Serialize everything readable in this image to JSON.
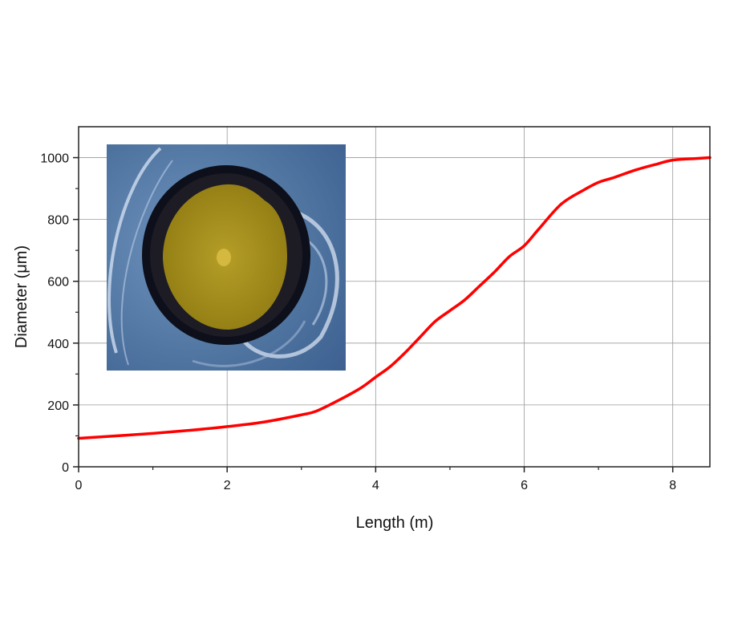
{
  "chart_data": {
    "type": "line",
    "title": "",
    "xlabel": "Length (m)",
    "ylabel": "Diameter (μm)",
    "xlim": [
      0,
      8.5
    ],
    "ylim": [
      0,
      1100
    ],
    "x_ticks": [
      "0",
      "2",
      "4",
      "6",
      "8"
    ],
    "y_ticks": [
      "0",
      "200",
      "400",
      "600",
      "800",
      "1000"
    ],
    "grid": true,
    "legend": "none",
    "series": [
      {
        "color": "#ff0000",
        "x": [
          0,
          0.5,
          1.0,
          1.5,
          2.0,
          2.5,
          3.0,
          3.2,
          3.5,
          3.8,
          4.0,
          4.2,
          4.4,
          4.6,
          4.8,
          5.0,
          5.2,
          5.4,
          5.6,
          5.8,
          6.0,
          6.2,
          6.5,
          6.8,
          7.0,
          7.2,
          7.5,
          7.8,
          8.0,
          8.3,
          8.5
        ],
        "y": [
          92,
          100,
          108,
          118,
          130,
          145,
          168,
          180,
          215,
          255,
          290,
          325,
          370,
          420,
          470,
          505,
          540,
          585,
          630,
          680,
          715,
          770,
          850,
          895,
          920,
          935,
          960,
          980,
          992,
          997,
          1000
        ]
      }
    ]
  },
  "inset": {
    "description_icon": "fiber-cross-section-micrograph",
    "colors": {
      "background": "#5b7fa8",
      "cladding": "#0d0f1a",
      "core": "#a99320",
      "core_center": "#d4b840"
    }
  }
}
